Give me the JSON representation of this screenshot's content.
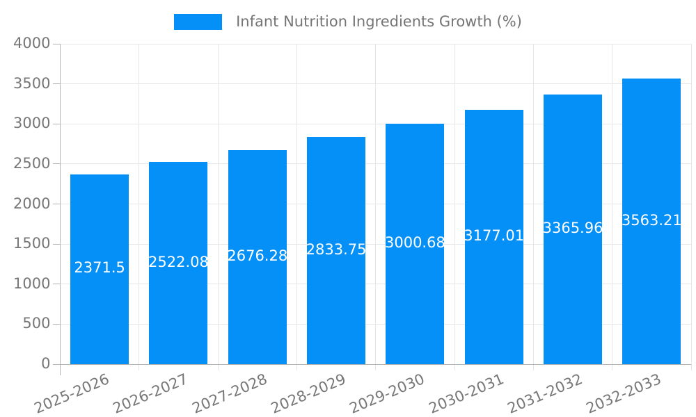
{
  "legend": {
    "label": "Infant Nutrition Ingredients Growth (%)"
  },
  "chart_data": {
    "type": "bar",
    "title": "Infant Nutrition Ingredients Growth (%)",
    "categories": [
      "2025-2026",
      "2026-2027",
      "2027-2028",
      "2028-2029",
      "2029-2030",
      "2030-2031",
      "2031-2032",
      "2032-2033"
    ],
    "values": [
      2371.5,
      2522.08,
      2676.28,
      2833.75,
      3000.68,
      3177.01,
      3365.96,
      3563.21
    ],
    "value_labels": [
      "2371.5",
      "2522.08",
      "2676.28",
      "2833.75",
      "3000.68",
      "3177.01",
      "3365.96",
      "3563.21"
    ],
    "xlabel": "",
    "ylabel": "",
    "ylim": [
      0,
      4000
    ],
    "y_ticks": [
      0,
      500,
      1000,
      1500,
      2000,
      2500,
      3000,
      3500,
      4000
    ],
    "grid": true,
    "legend_position": "top",
    "bar_color": "#0590f8",
    "value_label_color": "#ffffff",
    "axis_text_color": "#777777",
    "gridline_color": "#e6e6e6",
    "axis_line_color": "#b3b3b3"
  }
}
